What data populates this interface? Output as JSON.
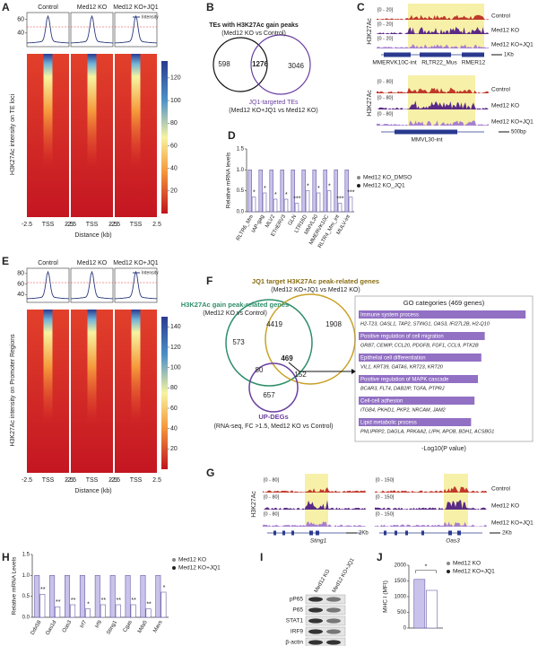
{
  "panel_labels": [
    "A",
    "B",
    "C",
    "D",
    "E",
    "F",
    "G",
    "H",
    "I",
    "J"
  ],
  "heatmap_panels": [
    {
      "columns": [
        "Control",
        "Med12 KO",
        "Med12 KO+JQ1"
      ],
      "legend": "Intensity",
      "profile_ylim": [
        20,
        70
      ],
      "profile_yticks": [
        40,
        60
      ],
      "colorbar_lim": [
        0,
        135
      ],
      "colorbar_ticks": [
        20,
        40,
        60,
        80,
        100,
        120
      ],
      "ylabel": "H3K27Ac intensity on TE loci",
      "xticks": [
        "-2.5",
        "TSS",
        "2.5"
      ],
      "xlabel": "Distance (kb)"
    },
    {
      "columns": [
        "Control",
        "Med12 KO",
        "Med12 KO+JQ1"
      ],
      "legend": "Intensity",
      "profile_ylim": [
        25,
        90
      ],
      "profile_yticks": [
        40,
        60,
        80
      ],
      "colorbar_lim": [
        0,
        150
      ],
      "colorbar_ticks": [
        20,
        40,
        60,
        80,
        100,
        120,
        140
      ],
      "ylabel": "H3K27Ac intensity on Promoter Regions",
      "xticks": [
        "-2.5",
        "TSS",
        "2.5"
      ],
      "xlabel": "Distance (kb)"
    }
  ],
  "venn_B": {
    "title": "TEs with H3K27Ac gain peaks",
    "subtitle": "(Med12 KO vs Control)",
    "counts": [
      598,
      1276,
      3046
    ],
    "label2": "JQ1-targeted TEs",
    "subtitle2": "(Med12 KO+JQ1 vs Med12 KO)"
  },
  "tracks_C": {
    "ylabel": "H3K27Ac",
    "samples": [
      "Control",
      "Med12 KO",
      "Med12 KO+JQ1"
    ],
    "loci": [
      {
        "ranges": [
          "[0 - 20]",
          "[0 - 20]",
          "[0 - 20]"
        ],
        "genes": [
          "MMERVK10C-int",
          "RLTR22_Mus",
          "RMER12"
        ],
        "scale": "1Kb"
      },
      {
        "ranges": [
          "[0 - 80]",
          "[0 - 80]",
          "[0 - 80]"
        ],
        "genes": [
          "MMVL30-int"
        ],
        "scale": "500bp"
      }
    ]
  },
  "venn_F": {
    "set1": {
      "name": "H3K27Ac gain peak-related genes",
      "subtitle": "(Med12 KO vs Control)"
    },
    "set2": {
      "name": "JQ1 target H3K27Ac peak-related genes",
      "subtitle": "(Med12 KO+JQ1 vs Med12 KO)"
    },
    "set3": {
      "name": "UP-DEGs",
      "subtitle": "(RNA-seq, FC >1.5, Med12 KO vs Control)"
    },
    "counts": [
      573,
      4419,
      1908,
      469,
      80,
      152,
      657
    ]
  },
  "go_F": {
    "title": "GO categories (469 genes)",
    "xlabel": "-Log10(P value)",
    "xlim": [
      0,
      10
    ],
    "categories": [
      "Immune system process",
      "Positive regulation of cell migration",
      "Epithelial cell differentiation",
      "Positive regulation of MAPK cascade",
      "Cell-cell adhesion",
      "Lipid metabolic process"
    ],
    "genes": [
      "H2-T23, OASL1, TAP2, STING1, OAS3, IFI27L2B, H2-Q10",
      "GRB7, CEMIP, CCL20, PDGFB, FGF1, CCL9, PTK2B",
      "VIL1, KRT39, GATA6, KRT23, KRT20",
      "BCAR3, FLT4, DAB2IP, TGFA, PTPRJ",
      "ITGB4, PKHD1, PKP2, NRCAM, JAM2",
      "PNLIPRP2, DAGLA, PRKAA2, LIPH, APOB, BDH1, ACSBG1"
    ],
    "values": [
      9.8,
      7.4,
      7.2,
      7,
      6.8,
      6.6
    ],
    "color": "#9270c4"
  },
  "tracks_G": {
    "ylabel": "H3K27Ac",
    "samples": [
      "Control",
      "Med12 KO",
      "Med12 KO+JQ1"
    ],
    "loci": [
      {
        "ranges": [
          "[0 - 80]",
          "[0 - 80]",
          "[0 - 80]"
        ],
        "genes": [
          "Sting1"
        ],
        "scale": "2Kb"
      },
      {
        "ranges": [
          "[0 - 150]",
          "[0 - 150]",
          "[0 - 150]"
        ],
        "genes": [
          "Oas3"
        ],
        "scale": "2Kb"
      }
    ]
  },
  "blot_I": {
    "columns": [
      "Med12 KO",
      "Med12 KO+JQ1"
    ],
    "rows": [
      "pP65",
      "P65",
      "STAT1",
      "IRF9",
      "β-actin"
    ]
  },
  "chart_data": [
    {
      "type": "bar",
      "ylabel": "Relative mRNA levels",
      "categories": [
        "RLTR6_Mm",
        "IAP-gag",
        "MLV2",
        "ETnERV3",
        "GLN",
        "LTR16D",
        "MMVL30",
        "MMERVK10C",
        "RLTR4_Mm_int",
        "MULV-int"
      ],
      "series": [
        {
          "name": "Med12 KO_DMSO",
          "color": "#c9c2ea",
          "values": [
            1,
            1,
            1,
            1,
            1,
            1,
            1,
            1,
            1,
            1
          ]
        },
        {
          "name": "Med12 KO_JQ1",
          "color": "#ffffff",
          "values": [
            0.35,
            0.45,
            0.3,
            0.3,
            0.2,
            0.5,
            0.45,
            0.5,
            0.2,
            0.35
          ]
        }
      ],
      "significance": [
        "*",
        "*",
        "*",
        "*",
        "***",
        "*",
        "*",
        "*",
        "***",
        "***"
      ],
      "ylim": [
        0,
        1.5
      ],
      "yticks": [
        {
          "value": 0,
          "label": "0.0"
        },
        {
          "value": 0.5,
          "label": "0.5"
        },
        {
          "value": 1,
          "label": "1.0"
        },
        {
          "value": 1.5,
          "label": "1.5"
        }
      ]
    },
    {
      "type": "bar",
      "ylabel": "Relative mRNA Levels",
      "categories": [
        "Ddx58",
        "Oas1d",
        "Oas3",
        "Irf7",
        "Irf9",
        "Sting1",
        "Cgas",
        "Mda5",
        "Mavs"
      ],
      "series": [
        {
          "name": "Med12 KO",
          "color": "#c9c2ea",
          "values": [
            1,
            1,
            1,
            1,
            1,
            1,
            1,
            1,
            1
          ]
        },
        {
          "name": "Med12 KO+JQ1",
          "color": "#ffffff",
          "values": [
            0.55,
            0.25,
            0.3,
            0.2,
            0.3,
            0.3,
            0.3,
            0.2,
            0.6
          ]
        }
      ],
      "significance": [
        "**",
        "**",
        "**",
        "*",
        "**",
        "**",
        "**",
        "**",
        "*"
      ],
      "ylim": [
        0,
        1.5
      ],
      "yticks": [
        {
          "value": 0,
          "label": "0.0"
        },
        {
          "value": 0.5,
          "label": "0.5"
        },
        {
          "value": 1,
          "label": "1.0"
        },
        {
          "value": 1.5,
          "label": "1.5"
        }
      ]
    },
    {
      "type": "bar",
      "ylabel": "MHC I (MFI)",
      "series": [
        {
          "name": "Med12 KO",
          "color": "#c9c2ea",
          "values": [
            1550
          ]
        },
        {
          "name": "Med12 KO+JQ1",
          "color": "#ffffff",
          "values": [
            1200
          ]
        }
      ],
      "significance": [
        "*"
      ],
      "ylim": [
        0,
        2000
      ],
      "yticks": [
        0,
        500,
        1000,
        1500,
        2000
      ]
    }
  ]
}
